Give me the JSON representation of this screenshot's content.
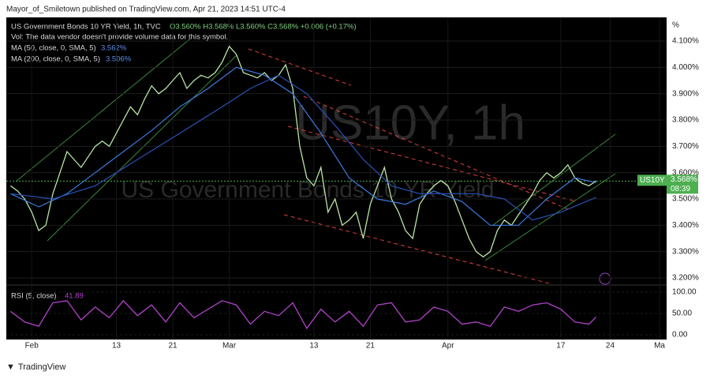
{
  "header": {
    "publisher": "Mayor_of_Smiletown published on TradingView.com, Apr 21, 2023 14:51 UTC-4"
  },
  "legend": {
    "symbol": "US Government Bonds 10 YR Yield, 1h, TVC",
    "ohlc": "O3.560% H3.568% L3.560% C3.568% +0.006 (+0.17%)",
    "volume": "Vol: The data vendor doesn't provide volume data for this symbol.",
    "ma50": "MA (50, close, 0, SMA, 5)",
    "ma50_value": "3.562%",
    "ma200": "MA (200, close, 0, SMA, 5)",
    "ma200_value": "3.506%",
    "rsi": "RSI (5, close)",
    "rsi_value": "41.89"
  },
  "watermark": {
    "symbol": "US10Y, 1h",
    "name": "US Government Bonds 10 YR Yield"
  },
  "price_tag": {
    "symbol": "US10Y",
    "price": "3.568%",
    "countdown": "08:39"
  },
  "axis_unit": "%",
  "footer": {
    "brand": "TradingView"
  },
  "chart_data": [
    {
      "type": "line",
      "xlim": [
        28.4,
        122
      ],
      "ylim": [
        3.176,
        4.19
      ],
      "xticks": [
        {
          "value": 32,
          "label": "Feb"
        },
        {
          "value": 44,
          "label": "13"
        },
        {
          "value": 52,
          "label": "21"
        },
        {
          "value": 60,
          "label": "Mar"
        },
        {
          "value": 72,
          "label": "13"
        },
        {
          "value": 80,
          "label": "21"
        },
        {
          "value": 91,
          "label": "Apr"
        },
        {
          "value": 107,
          "label": "17"
        },
        {
          "value": 114,
          "label": "24"
        },
        {
          "value": 121,
          "label": "Ma"
        }
      ],
      "yticks": [
        {
          "value": 3.2,
          "label": "3.200%"
        },
        {
          "value": 3.3,
          "label": "3.300%"
        },
        {
          "value": 3.4,
          "label": "3.400%"
        },
        {
          "value": 3.5,
          "label": "3.500%"
        },
        {
          "value": 3.6,
          "label": "3.600%"
        },
        {
          "value": 3.7,
          "label": "3.700%"
        },
        {
          "value": 3.8,
          "label": "3.800%"
        },
        {
          "value": 3.9,
          "label": "3.900%"
        },
        {
          "value": 4.0,
          "label": "4.000%"
        },
        {
          "value": 4.1,
          "label": "4.100%"
        }
      ],
      "last_price": 3.568,
      "series": [
        {
          "color": "#b9e6a5",
          "x": [
            29,
            30,
            31,
            32,
            33,
            34,
            35,
            36,
            37,
            38,
            39,
            40,
            41,
            42,
            43,
            44,
            45,
            46,
            47,
            48,
            49,
            50,
            51,
            52,
            53,
            54,
            55,
            56,
            57,
            58,
            59,
            60,
            61,
            62,
            63,
            64,
            65,
            66,
            67,
            68,
            69,
            70,
            71,
            72,
            73,
            74,
            75,
            76,
            77,
            78,
            79,
            80,
            81,
            82,
            83,
            84,
            85,
            86,
            87,
            88,
            89,
            90,
            91,
            92,
            93,
            94,
            95,
            96,
            97,
            98,
            99,
            100,
            101,
            102,
            103,
            104,
            105,
            106,
            107,
            108,
            109,
            110,
            111,
            112
          ],
          "values": [
            3.55,
            3.53,
            3.5,
            3.45,
            3.38,
            3.4,
            3.52,
            3.6,
            3.68,
            3.65,
            3.62,
            3.66,
            3.7,
            3.72,
            3.7,
            3.75,
            3.8,
            3.85,
            3.82,
            3.88,
            3.93,
            3.9,
            3.92,
            3.95,
            3.98,
            3.92,
            3.95,
            3.97,
            3.96,
            3.98,
            4.02,
            4.08,
            4.05,
            3.98,
            3.97,
            3.96,
            3.98,
            3.95,
            3.97,
            4.01,
            3.92,
            3.7,
            3.58,
            3.55,
            3.62,
            3.45,
            3.5,
            3.4,
            3.42,
            3.45,
            3.35,
            3.48,
            3.55,
            3.62,
            3.5,
            3.45,
            3.38,
            3.35,
            3.48,
            3.52,
            3.55,
            3.57,
            3.55,
            3.49,
            3.42,
            3.35,
            3.3,
            3.28,
            3.3,
            3.38,
            3.42,
            3.4,
            3.44,
            3.48,
            3.52,
            3.57,
            3.6,
            3.58,
            3.6,
            3.63,
            3.58,
            3.56,
            3.55,
            3.568
          ]
        },
        {
          "color": "#3d7be0",
          "x": [
            29,
            33,
            37,
            41,
            45,
            49,
            53,
            57,
            61,
            65,
            69,
            73,
            77,
            81,
            85,
            89,
            93,
            97,
            101,
            105,
            109,
            112
          ],
          "values": [
            3.52,
            3.47,
            3.52,
            3.6,
            3.68,
            3.76,
            3.85,
            3.92,
            4.0,
            3.97,
            3.9,
            3.75,
            3.58,
            3.5,
            3.48,
            3.53,
            3.49,
            3.4,
            3.4,
            3.5,
            3.58,
            3.562
          ]
        },
        {
          "color": "#2851b8",
          "x": [
            29,
            35,
            41,
            47,
            53,
            59,
            63,
            67,
            71,
            75,
            79,
            83,
            87,
            91,
            95,
            99,
            103,
            107,
            112
          ],
          "values": [
            3.52,
            3.5,
            3.55,
            3.65,
            3.75,
            3.85,
            3.92,
            3.97,
            3.9,
            3.78,
            3.65,
            3.55,
            3.52,
            3.52,
            3.52,
            3.5,
            3.42,
            3.45,
            3.506
          ]
        }
      ]
    },
    {
      "type": "line",
      "xlim": [
        28.4,
        122
      ],
      "ylim": [
        -11.1,
        114.8
      ],
      "yticks": [
        {
          "value": 100,
          "label": "100.00"
        },
        {
          "value": 50,
          "label": "50.00"
        },
        {
          "value": 0,
          "label": "0.00"
        }
      ],
      "series": [
        {
          "color": "#b042c8",
          "x": [
            29,
            31,
            33,
            35,
            37,
            39,
            41,
            43,
            45,
            47,
            49,
            51,
            53,
            55,
            57,
            59,
            61,
            63,
            65,
            67,
            69,
            71,
            73,
            75,
            77,
            79,
            81,
            83,
            85,
            87,
            89,
            91,
            93,
            95,
            97,
            99,
            101,
            103,
            105,
            107,
            109,
            111,
            112
          ],
          "values": [
            55,
            30,
            20,
            75,
            80,
            35,
            65,
            40,
            80,
            45,
            70,
            30,
            75,
            40,
            60,
            80,
            70,
            25,
            55,
            45,
            75,
            15,
            60,
            30,
            55,
            20,
            70,
            75,
            30,
            35,
            65,
            55,
            25,
            30,
            20,
            65,
            55,
            70,
            75,
            60,
            30,
            25,
            41.89
          ]
        }
      ]
    }
  ]
}
